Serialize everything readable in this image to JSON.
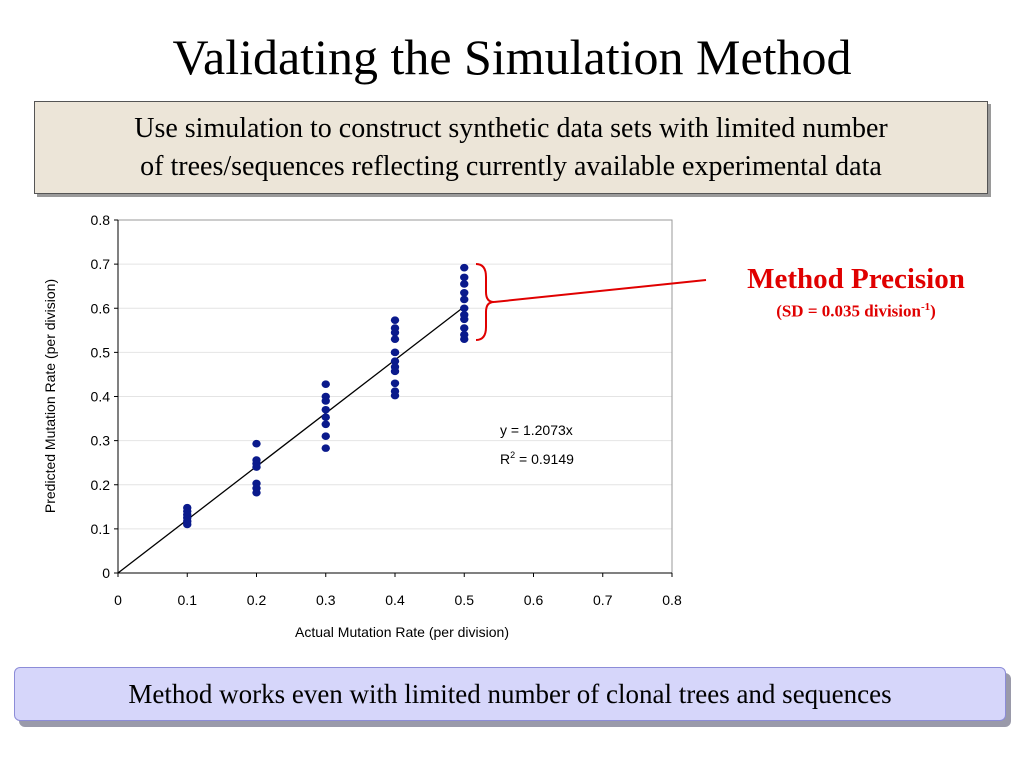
{
  "title": "Validating the Simulation Method",
  "top_box": {
    "line1": "Use simulation to construct synthetic data sets with limited number",
    "line2": "of trees/sequences reflecting currently available experimental data"
  },
  "annotation": {
    "main": "Method Precision",
    "sub_prefix": "(SD = 0.035 division",
    "sub_sup": "-1",
    "sub_suffix": ")",
    "color": "#e00000"
  },
  "bottom_box": {
    "text": "Method works even with limited number of clonal trees and sequences"
  },
  "chart_data": {
    "type": "scatter",
    "title": "",
    "xlabel": "Actual Mutation Rate (per division)",
    "ylabel": "Predicted Mutation Rate (per division)",
    "xlim": [
      0,
      0.8
    ],
    "ylim": [
      0,
      0.8
    ],
    "x_ticks": [
      "0",
      "0.1",
      "0.2",
      "0.3",
      "0.4",
      "0.5",
      "0.6",
      "0.7",
      "0.8"
    ],
    "y_ticks": [
      "0",
      "0.1",
      "0.2",
      "0.3",
      "0.4",
      "0.5",
      "0.6",
      "0.7",
      "0.8"
    ],
    "grid": "horizontal",
    "marker_color": "#0a1a8c",
    "series": [
      {
        "x": [
          0.1,
          0.1,
          0.1,
          0.1,
          0.1,
          0.1,
          0.2,
          0.2,
          0.2,
          0.2,
          0.2,
          0.2,
          0.2,
          0.3,
          0.3,
          0.3,
          0.3,
          0.3,
          0.3,
          0.3,
          0.3,
          0.4,
          0.4,
          0.4,
          0.4,
          0.4,
          0.4,
          0.4,
          0.4,
          0.4,
          0.4,
          0.4,
          0.4,
          0.5,
          0.5,
          0.5,
          0.5,
          0.5,
          0.5,
          0.5,
          0.5,
          0.5,
          0.5,
          0.5
        ],
        "y": [
          0.11,
          0.117,
          0.125,
          0.132,
          0.14,
          0.148,
          0.182,
          0.192,
          0.203,
          0.24,
          0.248,
          0.256,
          0.293,
          0.283,
          0.31,
          0.337,
          0.353,
          0.37,
          0.39,
          0.4,
          0.428,
          0.402,
          0.412,
          0.43,
          0.457,
          0.467,
          0.48,
          0.5,
          0.53,
          0.545,
          0.555,
          0.573,
          0.5,
          0.53,
          0.54,
          0.555,
          0.575,
          0.585,
          0.6,
          0.62,
          0.635,
          0.655,
          0.67,
          0.692
        ]
      }
    ],
    "trendline": {
      "slope": 1.2073,
      "equation": "y = 1.2073x",
      "r2_prefix": "R",
      "r2_sup": "2",
      "r2_suffix": " = 0.9149"
    }
  }
}
